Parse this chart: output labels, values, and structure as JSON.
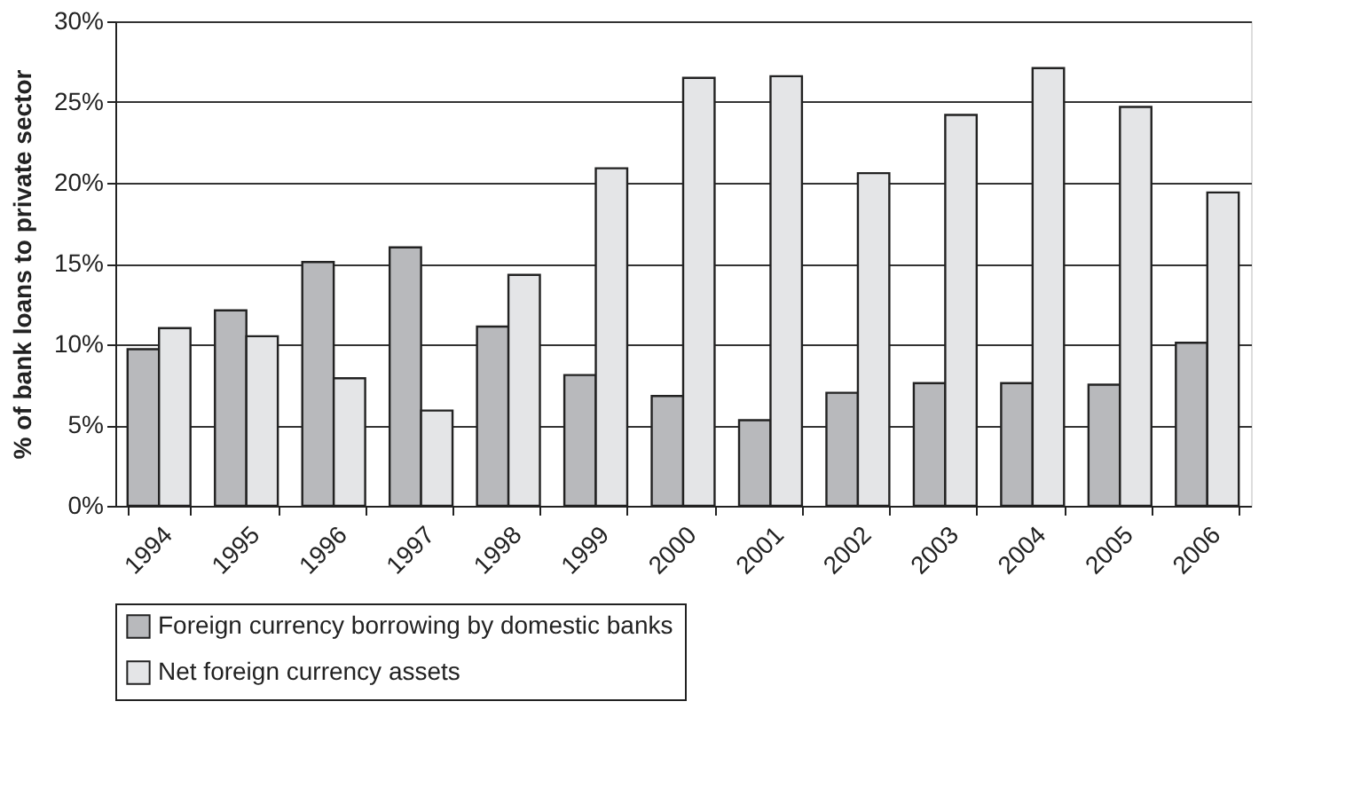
{
  "chart_data": {
    "type": "bar",
    "ylabel": "% of bank loans to private sector",
    "categories": [
      "1994",
      "1995",
      "1996",
      "1997",
      "1998",
      "1999",
      "2000",
      "2001",
      "2002",
      "2003",
      "2004",
      "2005",
      "2006"
    ],
    "series": [
      {
        "name": "Foreign currency borrowing by domestic banks",
        "color": "#b8b9bc",
        "values": [
          9.7,
          12.1,
          15.1,
          16.0,
          11.1,
          8.1,
          6.8,
          5.3,
          7.0,
          7.6,
          7.6,
          7.5,
          10.1
        ]
      },
      {
        "name": "Net foreign currency assets",
        "color": "#e4e5e7",
        "values": [
          11.0,
          10.5,
          7.9,
          5.9,
          14.3,
          20.9,
          26.5,
          26.6,
          20.6,
          24.2,
          27.1,
          24.7,
          19.4
        ]
      }
    ],
    "ylim": [
      0,
      30
    ],
    "yticks": [
      {
        "value": 0,
        "label": "0%"
      },
      {
        "value": 5,
        "label": "5%"
      },
      {
        "value": 10,
        "label": "10%"
      },
      {
        "value": 15,
        "label": "15%"
      },
      {
        "value": 20,
        "label": "20%"
      },
      {
        "value": 25,
        "label": "25%"
      },
      {
        "value": 30,
        "label": "30%"
      }
    ],
    "grid": "y",
    "legend": "bottom"
  }
}
